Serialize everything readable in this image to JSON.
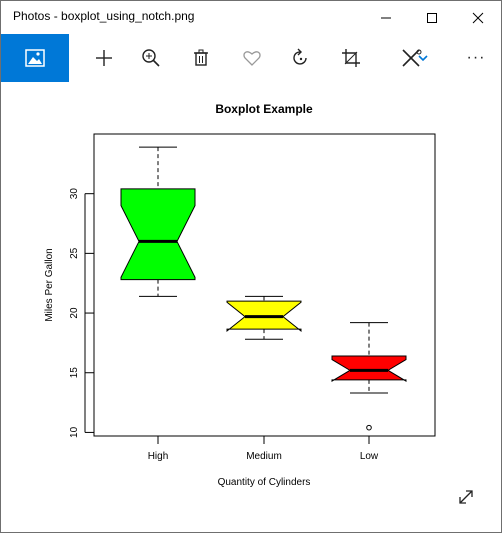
{
  "window": {
    "title": "Photos - boxplot_using_notch.png"
  },
  "toolbar": {
    "items": [
      "image-icon",
      "add-icon",
      "zoom-in-icon",
      "delete-icon",
      "favorite-icon",
      "rotate-icon",
      "crop-icon",
      "edit-icon",
      "chevron-down-icon",
      "more-icon"
    ],
    "more_label": "···",
    "accent": "#0078d7"
  },
  "chart_data": {
    "type": "boxplot",
    "title": "Boxplot Example",
    "xlabel": "Quantity of Cylinders",
    "ylabel": "Miles Per Gallon",
    "categories": [
      "High",
      "Medium",
      "Low"
    ],
    "yticks": [
      10,
      15,
      20,
      25,
      30
    ],
    "ylim": [
      9.7,
      35.0
    ],
    "notch": true,
    "boxes": [
      {
        "name": "High",
        "color": "#00ff00",
        "min": 21.4,
        "q1": 22.8,
        "median": 26.0,
        "q3": 30.4,
        "max": 33.9,
        "notch_low": 23.0,
        "notch_high": 29.0,
        "outliers": []
      },
      {
        "name": "Medium",
        "color": "#ffff00",
        "min": 17.8,
        "q1": 18.65,
        "median": 19.7,
        "q3": 21.0,
        "max": 21.4,
        "notch_low": 18.5,
        "notch_high": 20.9,
        "outliers": []
      },
      {
        "name": "Low",
        "color": "#ff0000",
        "min": 13.3,
        "q1": 14.4,
        "median": 15.2,
        "q3": 16.4,
        "max": 19.2,
        "notch_low": 14.3,
        "notch_high": 16.1,
        "outliers": [
          10.4
        ]
      }
    ],
    "grid": false
  },
  "view": {
    "fullscreen_icon": "expand-icon"
  }
}
